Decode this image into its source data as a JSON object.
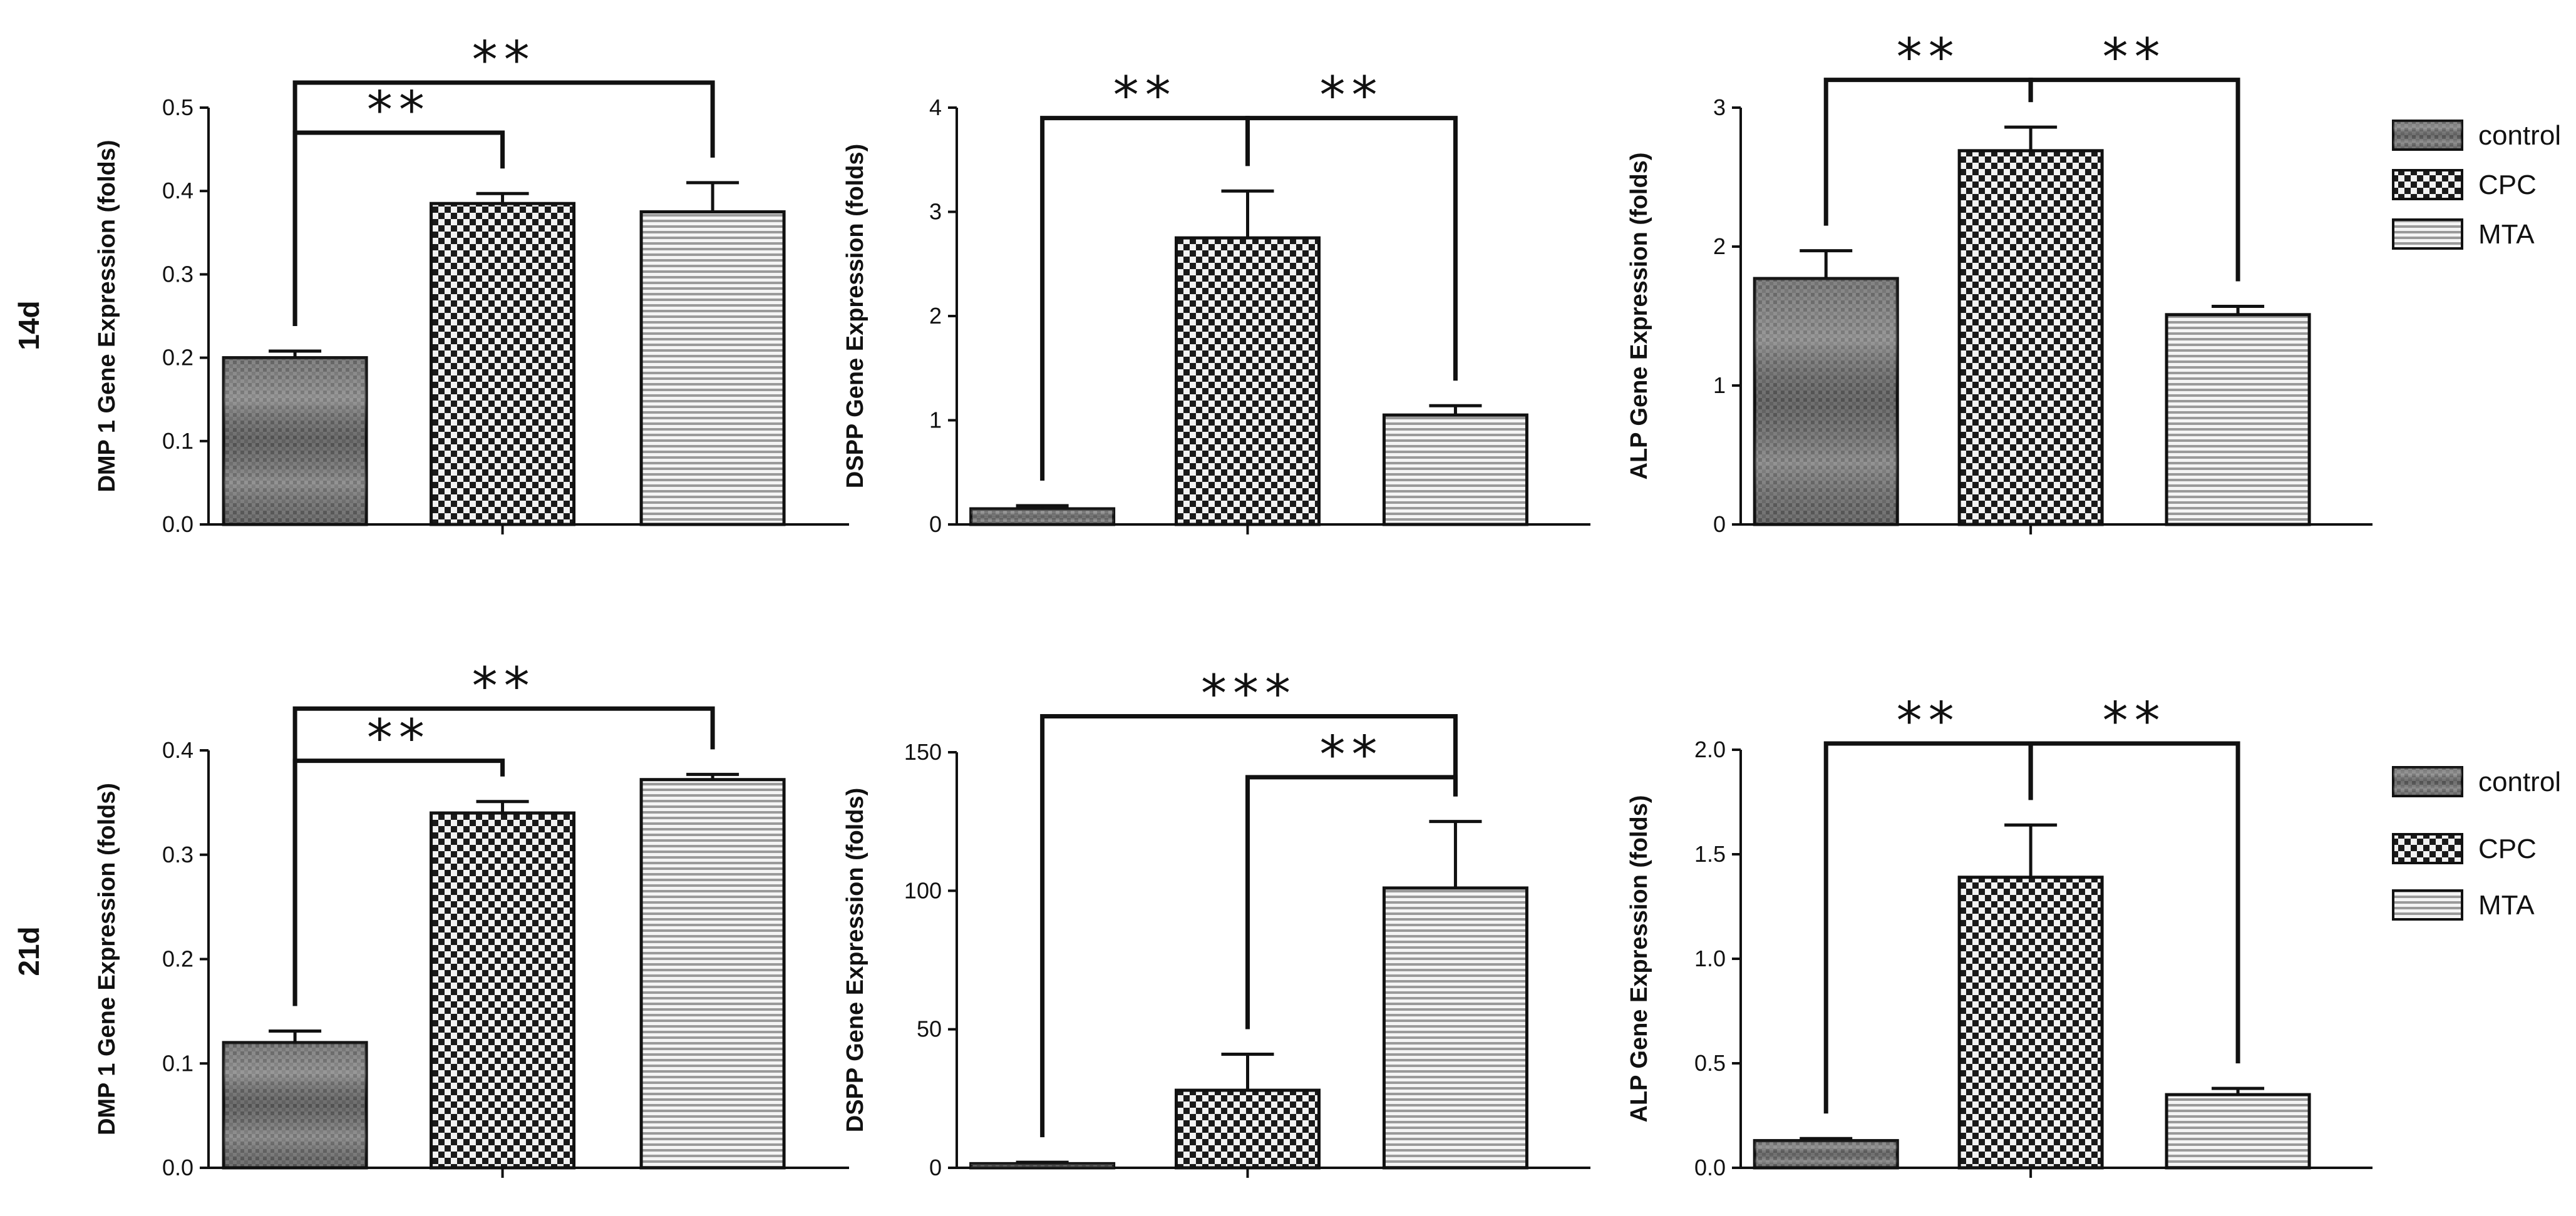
{
  "colors": {
    "ink": "#111111",
    "background": "#ffffff"
  },
  "row_labels": [
    "14d",
    "21d"
  ],
  "legend": {
    "items": [
      {
        "label": "control",
        "pattern": "mottled-gray"
      },
      {
        "label": "CPC",
        "pattern": "checkerboard"
      },
      {
        "label": "MTA",
        "pattern": "horizontal-stripes"
      }
    ]
  },
  "chart_data": [
    {
      "type": "bar",
      "row": "14d",
      "categories": [
        "control",
        "CPC",
        "MTA"
      ],
      "values": [
        0.2,
        0.385,
        0.375
      ],
      "errors": [
        0.008,
        0.012,
        0.035
      ],
      "ylabel": "DMP 1 Gene Expression (folds)",
      "ylim": [
        0,
        0.5
      ],
      "yticks": [
        "0.0",
        "0.1",
        "0.2",
        "0.3",
        "0.4",
        "0.5"
      ],
      "significance": [
        {
          "from": "control",
          "to": "CPC",
          "label": "**",
          "level": 0.47
        },
        {
          "from": "control",
          "to": "MTA",
          "label": "**",
          "level": 0.53
        }
      ]
    },
    {
      "type": "bar",
      "row": "14d",
      "categories": [
        "control",
        "CPC",
        "MTA"
      ],
      "values": [
        0.15,
        2.75,
        1.05
      ],
      "errors": [
        0.03,
        0.45,
        0.09
      ],
      "ylabel": "DSPP Gene Expression (folds)",
      "ylim": [
        0,
        4
      ],
      "yticks": [
        "0",
        "1",
        "2",
        "3",
        "4"
      ],
      "significance": [
        {
          "from": "control",
          "to": "CPC",
          "label": "**",
          "level": 3.9
        },
        {
          "from": "CPC",
          "to": "MTA",
          "label": "**",
          "level": 3.9
        }
      ]
    },
    {
      "type": "bar",
      "row": "14d",
      "categories": [
        "control",
        "CPC",
        "MTA"
      ],
      "values": [
        1.77,
        2.69,
        1.51
      ],
      "errors": [
        0.2,
        0.17,
        0.06
      ],
      "ylabel": "ALP Gene Expression (folds)",
      "ylim": [
        0,
        3
      ],
      "yticks": [
        "0",
        "1",
        "2",
        "3"
      ],
      "significance": [
        {
          "from": "control",
          "to": "CPC",
          "label": "**",
          "level": 3.2
        },
        {
          "from": "CPC",
          "to": "MTA",
          "label": "**",
          "level": 3.2
        }
      ]
    },
    {
      "type": "bar",
      "row": "21d",
      "categories": [
        "control",
        "CPC",
        "MTA"
      ],
      "values": [
        0.12,
        0.34,
        0.372
      ],
      "errors": [
        0.011,
        0.011,
        0.005
      ],
      "ylabel": "DMP 1 Gene Expression (folds)",
      "ylim": [
        0,
        0.4
      ],
      "yticks": [
        "0.0",
        "0.1",
        "0.2",
        "0.3",
        "0.4"
      ],
      "significance": [
        {
          "from": "control",
          "to": "CPC",
          "label": "**",
          "level": 0.39
        },
        {
          "from": "control",
          "to": "MTA",
          "label": "**",
          "level": 0.44
        }
      ]
    },
    {
      "type": "bar",
      "row": "21d",
      "categories": [
        "control",
        "CPC",
        "MTA"
      ],
      "values": [
        1.5,
        28,
        101
      ],
      "errors": [
        0.5,
        13,
        24
      ],
      "ylabel": "DSPP Gene Expression (folds)",
      "ylim": [
        0,
        150
      ],
      "yticks": [
        "0",
        "50",
        "100",
        "150"
      ],
      "significance": [
        {
          "from": "CPC",
          "to": "MTA",
          "label": "**",
          "level": 141
        },
        {
          "from": "control",
          "to": "MTA",
          "label": "***",
          "level": 163
        }
      ]
    },
    {
      "type": "bar",
      "row": "21d",
      "categories": [
        "control",
        "CPC",
        "MTA"
      ],
      "values": [
        0.13,
        1.39,
        0.35
      ],
      "errors": [
        0.01,
        0.25,
        0.03
      ],
      "ylabel": "ALP Gene Expression (folds)",
      "ylim": [
        0,
        2.0
      ],
      "yticks": [
        "0.0",
        "0.5",
        "1.0",
        "1.5",
        "2.0"
      ],
      "significance": [
        {
          "from": "control",
          "to": "CPC",
          "label": "**",
          "level": 2.03
        },
        {
          "from": "CPC",
          "to": "MTA",
          "label": "**",
          "level": 2.03
        }
      ]
    }
  ]
}
